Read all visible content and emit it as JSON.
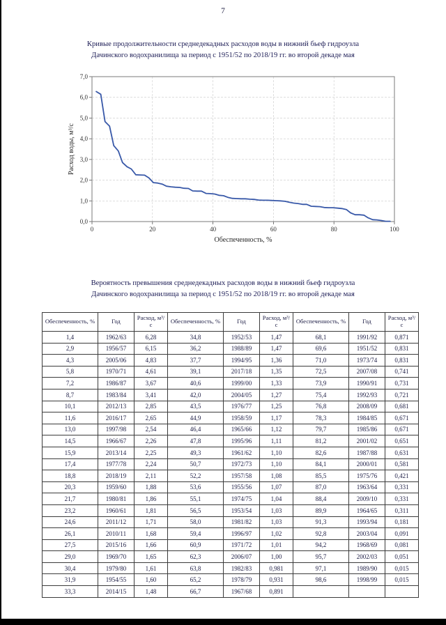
{
  "page": {
    "number": "7"
  },
  "chart_section": {
    "title_line1": "Кривые продолжительности среднедекадных расходов воды в нижний бьеф гидроузла",
    "title_line2": "Дачинского водохранилища за период с 1951/52 по 2018/19 гг. во второй декаде мая"
  },
  "chart_data": {
    "type": "line",
    "title": "Кривые продолжительности среднедекадных расходов воды в нижний бьеф гидроузла Дачинского водохранилища за период с 1951/52 по 2018/19 гг. во второй декаде мая",
    "xlabel": "Обеспеченность, %",
    "ylabel": "Расход воды, м³/с",
    "xlim": [
      0,
      100
    ],
    "ylim": [
      0,
      7
    ],
    "xticks": [
      0,
      20,
      40,
      60,
      80,
      100
    ],
    "yticks": [
      0,
      1,
      2,
      3,
      4,
      5,
      6,
      7
    ],
    "ytick_labels": [
      "0,0",
      "1,0",
      "2,0",
      "3,0",
      "4,0",
      "5,0",
      "6,0",
      "7,0"
    ],
    "grid": true,
    "legend": false,
    "line_color": "#3858a8",
    "x": [
      1.4,
      2.9,
      4.3,
      5.8,
      7.2,
      8.7,
      10.1,
      11.6,
      13.0,
      14.5,
      15.9,
      17.4,
      18.8,
      20.3,
      21.7,
      23.2,
      24.6,
      26.1,
      27.5,
      29.0,
      30.4,
      31.9,
      33.3,
      34.8,
      36.2,
      37.7,
      39.1,
      40.6,
      42.0,
      43.5,
      44.9,
      46.4,
      47.8,
      49.3,
      50.7,
      52.2,
      53.6,
      55.1,
      56.5,
      58.0,
      59.4,
      60.9,
      62.3,
      63.8,
      65.2,
      66.7,
      68.1,
      69.6,
      71.0,
      72.5,
      73.9,
      75.4,
      76.8,
      78.3,
      79.7,
      81.2,
      82.6,
      84.1,
      85.5,
      87.0,
      88.4,
      89.9,
      91.3,
      92.8,
      94.2,
      95.7,
      97.1,
      98.6
    ],
    "y": [
      6.28,
      6.15,
      4.83,
      4.61,
      3.67,
      3.41,
      2.85,
      2.65,
      2.54,
      2.26,
      2.25,
      2.24,
      2.11,
      1.88,
      1.86,
      1.81,
      1.71,
      1.68,
      1.66,
      1.65,
      1.61,
      1.6,
      1.48,
      1.47,
      1.47,
      1.36,
      1.35,
      1.33,
      1.27,
      1.25,
      1.17,
      1.12,
      1.11,
      1.1,
      1.1,
      1.08,
      1.07,
      1.04,
      1.03,
      1.03,
      1.02,
      1.01,
      1.0,
      0.981,
      0.931,
      0.891,
      0.871,
      0.831,
      0.831,
      0.741,
      0.731,
      0.721,
      0.681,
      0.671,
      0.671,
      0.651,
      0.631,
      0.581,
      0.421,
      0.331,
      0.331,
      0.311,
      0.181,
      0.091,
      0.081,
      0.051,
      0.015,
      0.015
    ]
  },
  "table_section": {
    "title_line1": "Вероятность превышения среднедекадных расходов воды в нижний бьеф гидроузла",
    "title_line2": "Дачинского водохранилища за период с 1951/52 по 2018/19 гг. во второй декаде мая"
  },
  "table": {
    "header_groups": [
      "Обеспеченность, %",
      "Год",
      "Расход, м³/с"
    ],
    "rows": [
      [
        "1,4",
        "1962/63",
        "6,28",
        "34,8",
        "1952/53",
        "1,47",
        "68,1",
        "1991/92",
        "0,871"
      ],
      [
        "2,9",
        "1956/57",
        "6,15",
        "36,2",
        "1988/89",
        "1,47",
        "69,6",
        "1951/52",
        "0,831"
      ],
      [
        "4,3",
        "2005/06",
        "4,83",
        "37,7",
        "1994/95",
        "1,36",
        "71,0",
        "1973/74",
        "0,831"
      ],
      [
        "5,8",
        "1970/71",
        "4,61",
        "39,1",
        "2017/18",
        "1,35",
        "72,5",
        "2007/08",
        "0,741"
      ],
      [
        "7,2",
        "1986/87",
        "3,67",
        "40,6",
        "1999/00",
        "1,33",
        "73,9",
        "1990/91",
        "0,731"
      ],
      [
        "8,7",
        "1983/84",
        "3,41",
        "42,0",
        "2004/05",
        "1,27",
        "75,4",
        "1992/93",
        "0,721"
      ],
      [
        "10,1",
        "2012/13",
        "2,85",
        "43,5",
        "1976/77",
        "1,25",
        "76,8",
        "2008/09",
        "0,681"
      ],
      [
        "11,6",
        "2016/17",
        "2,65",
        "44,9",
        "1958/59",
        "1,17",
        "78,3",
        "1984/85",
        "0,671"
      ],
      [
        "13,0",
        "1997/98",
        "2,54",
        "46,4",
        "1965/66",
        "1,12",
        "79,7",
        "1985/86",
        "0,671"
      ],
      [
        "14,5",
        "1966/67",
        "2,26",
        "47,8",
        "1995/96",
        "1,11",
        "81,2",
        "2001/02",
        "0,651"
      ],
      [
        "15,9",
        "2013/14",
        "2,25",
        "49,3",
        "1961/62",
        "1,10",
        "82,6",
        "1987/88",
        "0,631"
      ],
      [
        "17,4",
        "1977/78",
        "2,24",
        "50,7",
        "1972/73",
        "1,10",
        "84,1",
        "2000/01",
        "0,581"
      ],
      [
        "18,8",
        "2018/19",
        "2,11",
        "52,2",
        "1957/58",
        "1,08",
        "85,5",
        "1975/76",
        "0,421"
      ],
      [
        "20,3",
        "1959/60",
        "1,88",
        "53,6",
        "1955/56",
        "1,07",
        "87,0",
        "1963/64",
        "0,331"
      ],
      [
        "21,7",
        "1980/81",
        "1,86",
        "55,1",
        "1974/75",
        "1,04",
        "88,4",
        "2009/10",
        "0,331"
      ],
      [
        "23,2",
        "1960/61",
        "1,81",
        "56,5",
        "1953/54",
        "1,03",
        "89,9",
        "1964/65",
        "0,311"
      ],
      [
        "24,6",
        "2011/12",
        "1,71",
        "58,0",
        "1981/82",
        "1,03",
        "91,3",
        "1993/94",
        "0,181"
      ],
      [
        "26,1",
        "2010/11",
        "1,68",
        "59,4",
        "1996/97",
        "1,02",
        "92,8",
        "2003/04",
        "0,091"
      ],
      [
        "27,5",
        "2015/16",
        "1,66",
        "60,9",
        "1971/72",
        "1,01",
        "94,2",
        "1968/69",
        "0,081"
      ],
      [
        "29,0",
        "1969/70",
        "1,65",
        "62,3",
        "2006/07",
        "1,00",
        "95,7",
        "2002/03",
        "0,051"
      ],
      [
        "30,4",
        "1979/80",
        "1,61",
        "63,8",
        "1982/83",
        "0,981",
        "97,1",
        "1989/90",
        "0,015"
      ],
      [
        "31,9",
        "1954/55",
        "1,60",
        "65,2",
        "1978/79",
        "0,931",
        "98,6",
        "1998/99",
        "0,015"
      ],
      [
        "33,3",
        "2014/15",
        "1,48",
        "66,7",
        "1967/68",
        "0,891",
        "",
        "",
        ""
      ]
    ]
  }
}
